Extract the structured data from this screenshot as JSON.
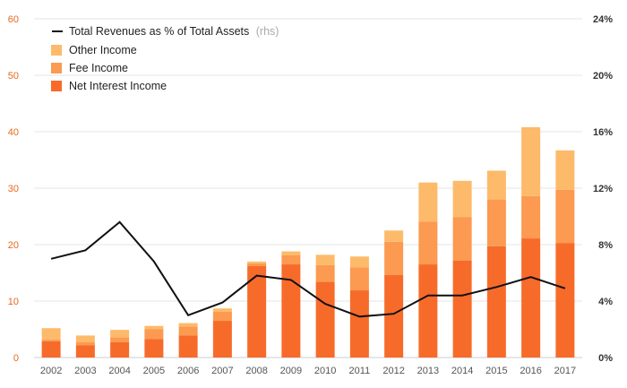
{
  "chart_data": {
    "type": "bar",
    "categories": [
      "2002",
      "2003",
      "2004",
      "2005",
      "2006",
      "2007",
      "2008",
      "2009",
      "2010",
      "2011",
      "2012",
      "2013",
      "2014",
      "2015",
      "2016",
      "2017"
    ],
    "series": [
      {
        "name": "Net Interest Income",
        "kind": "bar",
        "axis": "left",
        "color": "#f76b2a",
        "values": [
          2.9,
          2.2,
          2.7,
          3.3,
          3.9,
          6.5,
          16.2,
          16.5,
          13.4,
          11.9,
          14.6,
          16.5,
          17.2,
          19.7,
          21.1,
          20.3
        ]
      },
      {
        "name": "Fee Income",
        "kind": "bar",
        "axis": "left",
        "color": "#fb9a50",
        "values": [
          0.3,
          0.5,
          0.9,
          1.7,
          1.6,
          1.6,
          0.5,
          1.6,
          3.0,
          4.1,
          5.9,
          7.6,
          7.7,
          8.3,
          7.5,
          9.4
        ]
      },
      {
        "name": "Other Income",
        "kind": "bar",
        "axis": "left",
        "color": "#fdba6a",
        "values": [
          2.0,
          1.2,
          1.3,
          0.6,
          0.6,
          0.6,
          0.3,
          0.7,
          1.8,
          1.9,
          2.0,
          6.9,
          6.4,
          5.1,
          12.2,
          7.0
        ]
      },
      {
        "name": "Total Revenues as % of Total Assets",
        "kind": "line",
        "axis": "right",
        "color": "#111111",
        "values": [
          7.0,
          7.6,
          9.6,
          6.8,
          3.0,
          3.9,
          5.8,
          5.5,
          3.8,
          2.9,
          3.1,
          4.4,
          4.4,
          5.0,
          5.7,
          4.9
        ]
      }
    ],
    "legend": {
      "line_label": "Total Revenues as % of Total Assets",
      "line_note": "(rhs)",
      "other_label": "Other Income",
      "fee_label": "Fee Income",
      "net_label": "Net Interest Income",
      "placement": "top-left"
    },
    "ylim_left": [
      0,
      60
    ],
    "yticks_left": [
      "0",
      "10",
      "20",
      "30",
      "40",
      "50",
      "60"
    ],
    "ylim_right": [
      0,
      24
    ],
    "yticks_right": [
      "0%",
      "4%",
      "8%",
      "12%",
      "16%",
      "20%",
      "24%"
    ],
    "grid": true,
    "colors": {
      "left_axis_text": "#e8681c",
      "grid": "#e6e6e6",
      "baseline": "#cccccc"
    }
  }
}
